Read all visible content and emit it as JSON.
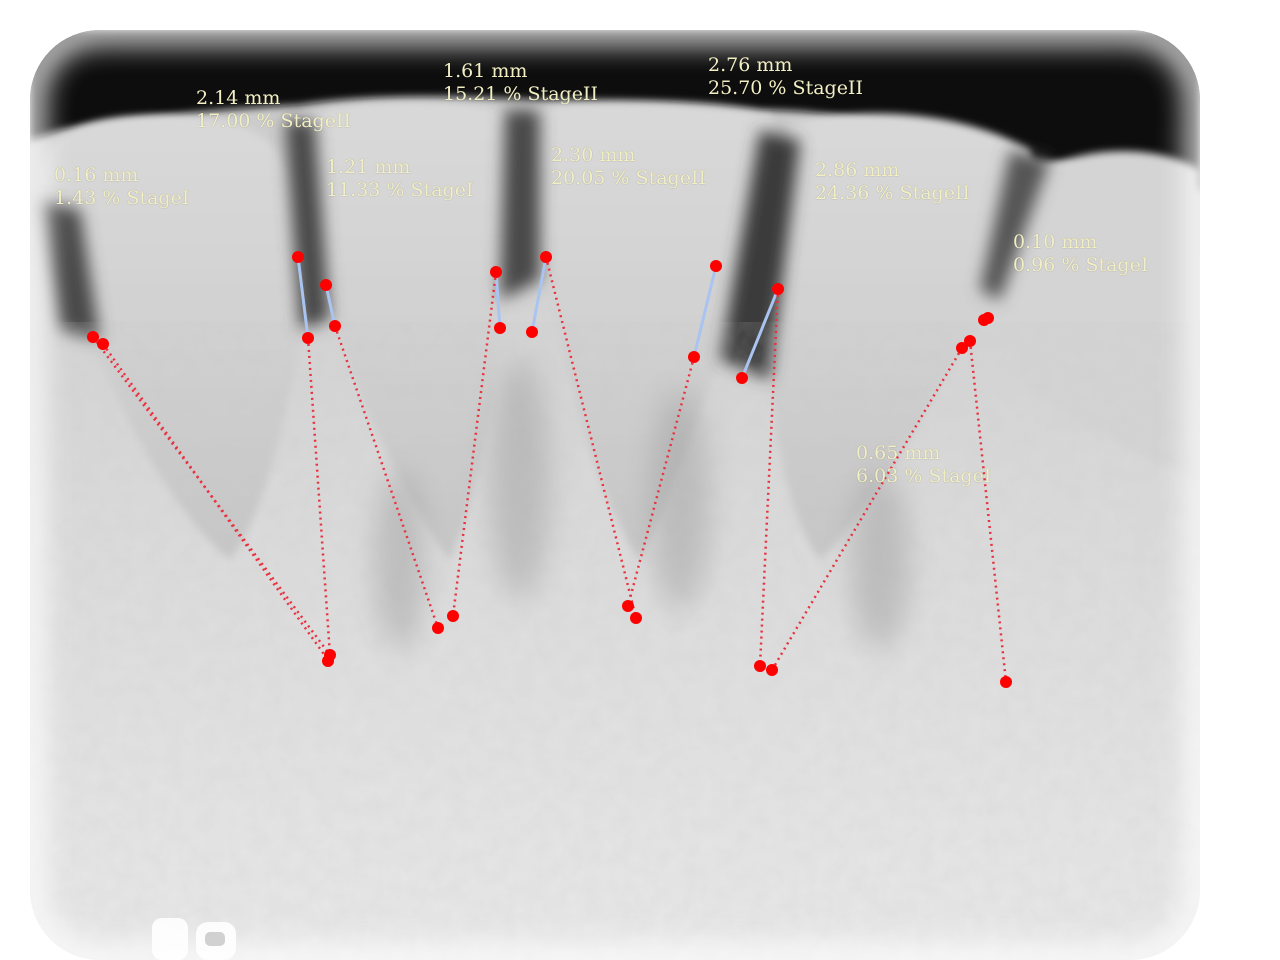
{
  "image": {
    "description_hidden": false,
    "point_color": "#ff0000",
    "dotted_line_color": "#e8323f",
    "short_line_color": "#a9c4f0",
    "label_color": "#f3efc4"
  },
  "measurements": [
    {
      "id": "m1",
      "mm": "0.16 mm",
      "percent": "1.43 %",
      "stage": "StageI"
    },
    {
      "id": "m2",
      "mm": "2.14 mm",
      "percent": "17.00 %",
      "stage": "StageII"
    },
    {
      "id": "m3",
      "mm": "1.21 mm",
      "percent": "11.33 %",
      "stage": "StageI"
    },
    {
      "id": "m4",
      "mm": "1.61 mm",
      "percent": "15.21 %",
      "stage": "StageII"
    },
    {
      "id": "m5",
      "mm": "2.30 mm",
      "percent": "20.05 %",
      "stage": "StageII"
    },
    {
      "id": "m6",
      "mm": "2.76 mm",
      "percent": "25.70 %",
      "stage": "StageII"
    },
    {
      "id": "m7",
      "mm": "2.86 mm",
      "percent": "24.36 %",
      "stage": "StageII"
    },
    {
      "id": "m8",
      "mm": "0.10 mm",
      "percent": "0.96 %",
      "stage": "StageI"
    },
    {
      "id": "m9",
      "mm": "0.65 mm",
      "percent": "6.03 %",
      "stage": "StageI"
    }
  ]
}
